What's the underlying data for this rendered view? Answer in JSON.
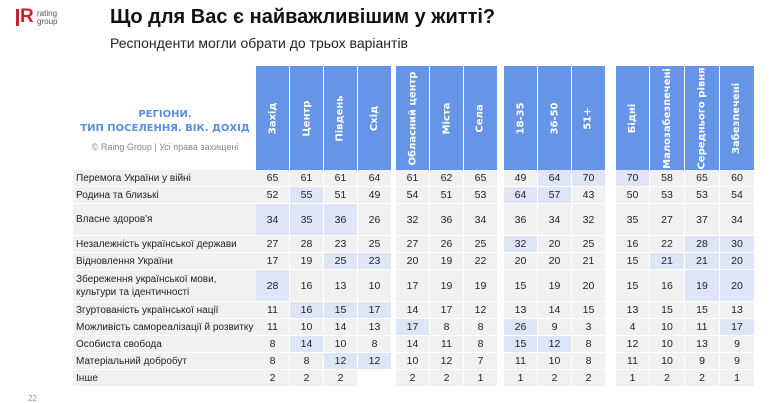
{
  "logo": {
    "mark": "R",
    "line1": "rating",
    "line2": "group"
  },
  "header": {
    "title": "Що для Вас є найважливішим у житті?",
    "subtitle": "Респонденти могли обрати до трьох варіантів"
  },
  "legend": {
    "line1": "РЕГІОНИ.",
    "line2": "ТИП ПОСЕЛЕННЯ. ВІК. ДОХІД",
    "copyright": "© Raing Group | Усі права захищені"
  },
  "columns": [
    "Захід",
    "Центр",
    "Південь",
    "Схід",
    "Обласний центр",
    "Міста",
    "Села",
    "18-35",
    "36-50",
    "51+",
    "Бідні",
    "Малозабезпечені",
    "Середнього рівня",
    "Забезпечені"
  ],
  "colors": {
    "header_bg": "#6694e6",
    "cell_bg": "#f1f1f1",
    "highlight_bg": "#dde5f6",
    "legend_accent": "#5b8ee0",
    "logo_red": "#c8202f"
  },
  "rows": [
    {
      "label": "Перемога України у війні",
      "values": [
        "65",
        "61",
        "61",
        "64",
        "61",
        "62",
        "65",
        "49",
        "64",
        "70",
        "70",
        "58",
        "65",
        "60"
      ],
      "hl": [
        8,
        9,
        10
      ]
    },
    {
      "label": "Родина та близькі",
      "values": [
        "52",
        "55",
        "51",
        "49",
        "54",
        "51",
        "53",
        "64",
        "57",
        "43",
        "50",
        "53",
        "53",
        "54"
      ],
      "hl": [
        1,
        7,
        8
      ]
    },
    {
      "label": "Власне здоров'я",
      "values": [
        "34",
        "35",
        "36",
        "26",
        "32",
        "36",
        "34",
        "36",
        "34",
        "32",
        "35",
        "27",
        "37",
        "34"
      ],
      "hl": [
        0,
        1,
        2
      ]
    },
    {
      "label": "Незалежність української держави",
      "values": [
        "27",
        "28",
        "23",
        "25",
        "27",
        "26",
        "25",
        "32",
        "20",
        "25",
        "16",
        "22",
        "28",
        "30"
      ],
      "hl": [
        7,
        12,
        13
      ]
    },
    {
      "label": "Відновлення України",
      "values": [
        "17",
        "19",
        "25",
        "23",
        "20",
        "19",
        "22",
        "20",
        "20",
        "21",
        "15",
        "21",
        "21",
        "20"
      ],
      "hl": [
        2,
        3,
        11,
        12,
        13
      ]
    },
    {
      "label": "Збереження української мови, культури та ідентичності",
      "values": [
        "28",
        "16",
        "13",
        "10",
        "17",
        "19",
        "19",
        "15",
        "19",
        "20",
        "15",
        "16",
        "19",
        "20"
      ],
      "hl": [
        0,
        12,
        13
      ]
    },
    {
      "label": "Згуртованість української нації",
      "values": [
        "11",
        "16",
        "15",
        "17",
        "14",
        "17",
        "12",
        "13",
        "14",
        "15",
        "13",
        "15",
        "15",
        "13"
      ],
      "hl": [
        1,
        2,
        3
      ]
    },
    {
      "label": "Можливість самореалізації й розвитку",
      "values": [
        "11",
        "10",
        "14",
        "13",
        "17",
        "8",
        "8",
        "26",
        "9",
        "3",
        "4",
        "10",
        "11",
        "17"
      ],
      "hl": [
        4,
        7,
        13
      ]
    },
    {
      "label": "Особиста свобода",
      "values": [
        "8",
        "14",
        "10",
        "8",
        "14",
        "11",
        "8",
        "15",
        "12",
        "8",
        "12",
        "10",
        "13",
        "9"
      ],
      "hl": [
        1,
        7,
        8
      ]
    },
    {
      "label": "Матеріальний добробут",
      "values": [
        "8",
        "8",
        "12",
        "12",
        "10",
        "12",
        "7",
        "11",
        "10",
        "8",
        "11",
        "10",
        "9",
        "9"
      ],
      "hl": [
        2,
        3
      ]
    },
    {
      "label": "Інше",
      "values": [
        "2",
        "2",
        "2",
        "",
        "2",
        "2",
        "1",
        "1",
        "2",
        "2",
        "1",
        "2",
        "2",
        "1"
      ],
      "hl": []
    }
  ],
  "page_number": "22"
}
